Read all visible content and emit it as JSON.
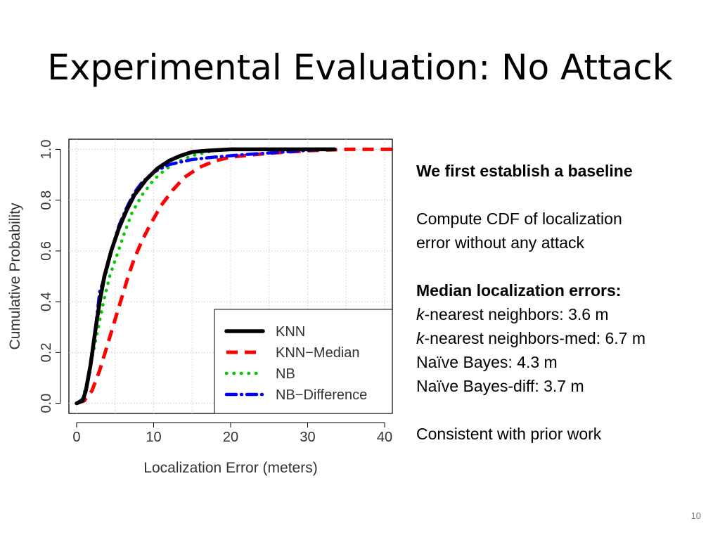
{
  "slide": {
    "title": "Experimental Evaluation: No Attack",
    "page_number": "10"
  },
  "text_panel": {
    "heading": "We first establish a baseline",
    "desc_line1": "Compute CDF of localization",
    "desc_line2": "error without any attack",
    "median_heading": "Median localization errors:",
    "median_items": [
      {
        "italic": "k",
        "rest": "-nearest neighbors: 3.6 m"
      },
      {
        "italic": "k",
        "rest": "-nearest neighbors-med: 6.7 m"
      },
      {
        "italic": "",
        "rest": "Naïve Bayes: 4.3 m"
      },
      {
        "italic": "",
        "rest": "Naïve Bayes-diff: 3.7 m"
      }
    ],
    "conclusion": "Consistent with prior work"
  },
  "chart_data": {
    "type": "line",
    "xlabel": "Localization Error (meters)",
    "ylabel": "Cumulative Probability",
    "xlim": [
      -1,
      41
    ],
    "ylim": [
      -0.04,
      1.04
    ],
    "xticks": [
      "0",
      "10",
      "20",
      "30",
      "40"
    ],
    "yticks": [
      "0.0",
      "0.2",
      "0.4",
      "0.6",
      "0.8",
      "1.0"
    ],
    "grid": true,
    "legend_position": "bottom-right",
    "series": [
      {
        "name": "KNN",
        "color": "#000000",
        "dash": "solid",
        "x": [
          0,
          0.8,
          1.2,
          1.8,
          2.5,
          3.0,
          3.6,
          4.5,
          5.5,
          6.5,
          7.5,
          9,
          10.5,
          12,
          13.5,
          15,
          17,
          20,
          25,
          30,
          33.5
        ],
        "y": [
          0,
          0.01,
          0.05,
          0.15,
          0.3,
          0.4,
          0.5,
          0.6,
          0.69,
          0.76,
          0.82,
          0.88,
          0.925,
          0.955,
          0.975,
          0.99,
          0.995,
          1.0,
          1.0,
          1.0,
          1.0
        ]
      },
      {
        "name": "KNN−Median",
        "color": "#ff0000",
        "dash": "long-dash",
        "x": [
          0,
          1,
          2,
          3,
          4,
          5,
          6,
          6.7,
          7.5,
          8.5,
          9.5,
          11,
          12.5,
          14,
          16,
          18,
          20,
          25,
          30,
          35,
          41
        ],
        "y": [
          0,
          0.01,
          0.05,
          0.13,
          0.23,
          0.33,
          0.43,
          0.5,
          0.57,
          0.64,
          0.7,
          0.78,
          0.84,
          0.89,
          0.93,
          0.955,
          0.97,
          0.985,
          0.995,
          1.0,
          1.0
        ]
      },
      {
        "name": "NB",
        "color": "#00cc00",
        "dash": "dotted",
        "x": [
          0,
          0.8,
          1.5,
          2.5,
          3.5,
          4.3,
          5.2,
          6.2,
          7.2,
          8.5,
          10,
          11.5,
          13,
          15,
          17,
          19,
          21
        ],
        "y": [
          0,
          0.02,
          0.1,
          0.25,
          0.4,
          0.5,
          0.58,
          0.67,
          0.75,
          0.82,
          0.88,
          0.92,
          0.95,
          0.975,
          0.99,
          1.0,
          1.0
        ]
      },
      {
        "name": "NB−Difference",
        "color": "#0000ff",
        "dash": "dash-dot",
        "x": [
          0,
          1,
          1.7,
          2.4,
          3.0,
          3.7,
          4.5,
          5.5,
          6.5,
          7.5,
          8.5,
          10,
          12,
          15,
          18,
          22,
          27,
          32
        ],
        "y": [
          0,
          0.02,
          0.12,
          0.28,
          0.44,
          0.5,
          0.6,
          0.7,
          0.77,
          0.83,
          0.87,
          0.91,
          0.94,
          0.96,
          0.97,
          0.98,
          0.99,
          1.0
        ]
      }
    ]
  }
}
